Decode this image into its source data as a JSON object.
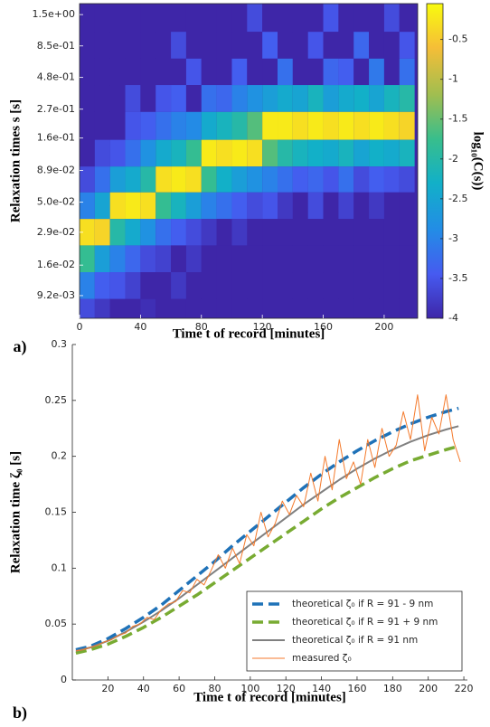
{
  "chart_data": [
    {
      "type": "heatmap",
      "panel_label": "a)",
      "xlabel": "Time t of record [minutes]",
      "ylabel": "Relaxation times s [s]",
      "colorbar_label": "log₁₀(C(s))",
      "colormap": "parula",
      "ylog": true,
      "x": [
        5,
        15,
        25,
        35,
        45,
        55,
        65,
        75,
        85,
        95,
        105,
        115,
        125,
        135,
        145,
        155,
        165,
        175,
        185,
        195,
        205,
        215
      ],
      "y": [
        1.4,
        0.86,
        0.53,
        0.33,
        0.2,
        0.12,
        0.076,
        0.047,
        0.029,
        0.018,
        0.011,
        0.0068
      ],
      "z": [
        [
          -4,
          -4,
          -4,
          -4,
          -4,
          -4,
          -4,
          -4,
          -4,
          -4,
          -4,
          -3.6,
          -4,
          -4,
          -4,
          -4,
          -3.5,
          -4,
          -4,
          -4,
          -3.6,
          -4
        ],
        [
          -4,
          -4,
          -4,
          -4,
          -4,
          -4,
          -3.6,
          -4,
          -4,
          -4,
          -4,
          -4,
          -3.4,
          -4,
          -4,
          -3.5,
          -4,
          -4,
          -3.3,
          -4,
          -4,
          -3.5
        ],
        [
          -4,
          -4,
          -4,
          -4,
          -4,
          -4,
          -4,
          -3.5,
          -4,
          -4,
          -3.4,
          -4,
          -4,
          -3.2,
          -4,
          -4,
          -3.3,
          -3.4,
          -4,
          -3.1,
          -4,
          -3.2
        ],
        [
          -4,
          -4,
          -4,
          -3.6,
          -4,
          -3.5,
          -3.4,
          -4,
          -3.2,
          -3.3,
          -3,
          -2.8,
          -2.6,
          -2.4,
          -2.5,
          -2.2,
          -2.6,
          -2.4,
          -2.3,
          -2.5,
          -2.2,
          -2
        ],
        [
          -4,
          -4,
          -4,
          -3.5,
          -3.4,
          -3.2,
          -3,
          -2.9,
          -2.4,
          -2.2,
          -2,
          -1.6,
          -0.2,
          -0.2,
          -0.3,
          -0.2,
          -0.3,
          -0.2,
          -0.3,
          -0.2,
          -0.3,
          -0.4
        ],
        [
          -4,
          -3.6,
          -3.5,
          -3.2,
          -2.8,
          -2.4,
          -2.2,
          -1.8,
          -0.2,
          -0.3,
          -0.2,
          -0.3,
          -1.6,
          -2,
          -2.2,
          -2.3,
          -2.4,
          -2.2,
          -2.5,
          -2.3,
          -2.4,
          -2.2
        ],
        [
          -3.6,
          -3.2,
          -2.6,
          -2.4,
          -2,
          -0.3,
          -0.2,
          -0.3,
          -1.8,
          -2.3,
          -2.6,
          -2.8,
          -3,
          -3.2,
          -3.4,
          -3.3,
          -3.5,
          -3.2,
          -3.6,
          -3.4,
          -3.5,
          -3.6
        ],
        [
          -3,
          -2.5,
          -0.3,
          -0.2,
          -0.3,
          -1.8,
          -2.2,
          -2.6,
          -3,
          -3.2,
          -3.4,
          -3.6,
          -3.5,
          -3.8,
          -4,
          -3.6,
          -4,
          -3.7,
          -4,
          -3.8,
          -4,
          -4
        ],
        [
          -0.3,
          -0.4,
          -2,
          -2.4,
          -2.8,
          -3.2,
          -3.4,
          -3.6,
          -3.8,
          -4,
          -3.8,
          -4,
          -4,
          -4,
          -4,
          -4,
          -4,
          -4,
          -4,
          -4,
          -4,
          -4
        ],
        [
          -1.8,
          -2.6,
          -3,
          -3.3,
          -3.6,
          -3.7,
          -4,
          -3.8,
          -4,
          -4,
          -4,
          -4,
          -4,
          -4,
          -4,
          -4,
          -4,
          -4,
          -4,
          -4,
          -4,
          -4
        ],
        [
          -3,
          -3.4,
          -3.5,
          -3.7,
          -4,
          -4,
          -3.8,
          -4,
          -4,
          -4,
          -4,
          -4,
          -4,
          -4,
          -4,
          -4,
          -4,
          -4,
          -4,
          -4,
          -4,
          -4
        ],
        [
          -3.6,
          -3.8,
          -4,
          -4,
          -3.9,
          -4,
          -4,
          -4,
          -4,
          -4,
          -4,
          -4,
          -4,
          -4,
          -4,
          -4,
          -4,
          -4,
          -4,
          -4,
          -4,
          -4
        ]
      ],
      "xlim": [
        0,
        222
      ],
      "xticks": [
        0,
        40,
        80,
        120,
        160,
        200
      ],
      "ylim": [
        0.0061,
        1.83
      ],
      "yticks": [
        {
          "value": 1.5,
          "label": "1.5e+00"
        },
        {
          "value": 0.85,
          "label": "8.5e-01"
        },
        {
          "value": 0.48,
          "label": "4.8e-01"
        },
        {
          "value": 0.27,
          "label": "2.7e-01"
        },
        {
          "value": 0.16,
          "label": "1.6e-01"
        },
        {
          "value": 0.089,
          "label": "8.9e-02"
        },
        {
          "value": 0.05,
          "label": "5.0e-02"
        },
        {
          "value": 0.029,
          "label": "2.9e-02"
        },
        {
          "value": 0.016,
          "label": "1.6e-02"
        },
        {
          "value": 0.0092,
          "label": "9.2e-03"
        }
      ],
      "clim": [
        -4,
        -0.05
      ],
      "cticks": [
        -0.5,
        -1,
        -1.5,
        -2,
        -2.5,
        -3,
        -3.5,
        -4
      ]
    },
    {
      "type": "line",
      "panel_label": "b)",
      "xlabel": "Time t of record [minutes]",
      "ylabel": "Relaxation time ζ₀ [s]",
      "legend": "lower right",
      "x": [
        2,
        10,
        20,
        30,
        40,
        50,
        60,
        70,
        80,
        90,
        100,
        110,
        120,
        130,
        140,
        150,
        160,
        170,
        180,
        190,
        200,
        210,
        217
      ],
      "series": [
        {
          "name": "theoretical ζ₀ if R = 91 -  9 nm",
          "color": "#1f72b8",
          "style": "dashed",
          "values": [
            0.027,
            0.03,
            0.037,
            0.046,
            0.056,
            0.067,
            0.08,
            0.093,
            0.106,
            0.12,
            0.133,
            0.146,
            0.159,
            0.172,
            0.184,
            0.195,
            0.205,
            0.214,
            0.222,
            0.229,
            0.235,
            0.24,
            0.243
          ]
        },
        {
          "name": "theoretical ζ₀ if R = 91 + 9 nm",
          "color": "#78ab32",
          "style": "dashed",
          "values": [
            0.024,
            0.027,
            0.032,
            0.039,
            0.047,
            0.056,
            0.066,
            0.076,
            0.087,
            0.098,
            0.109,
            0.12,
            0.131,
            0.142,
            0.153,
            0.163,
            0.172,
            0.181,
            0.189,
            0.196,
            0.201,
            0.206,
            0.209
          ]
        },
        {
          "name": "theoretical ζ₀ if R = 91 nm",
          "color": "#808080",
          "style": "solid",
          "values": [
            0.026,
            0.029,
            0.035,
            0.043,
            0.052,
            0.062,
            0.073,
            0.085,
            0.097,
            0.109,
            0.121,
            0.133,
            0.145,
            0.157,
            0.168,
            0.179,
            0.189,
            0.198,
            0.206,
            0.213,
            0.219,
            0.224,
            0.227
          ]
        },
        {
          "name": "measured ζ₀",
          "color": "#f47a2c",
          "style": "thin",
          "x": [
            2,
            6,
            10,
            14,
            18,
            22,
            26,
            30,
            34,
            38,
            42,
            46,
            50,
            54,
            58,
            62,
            66,
            70,
            74,
            78,
            82,
            86,
            90,
            94,
            98,
            102,
            106,
            110,
            114,
            118,
            122,
            126,
            130,
            134,
            138,
            142,
            146,
            150,
            154,
            158,
            162,
            166,
            170,
            174,
            178,
            182,
            186,
            190,
            194,
            198,
            202,
            206,
            210,
            214,
            218
          ],
          "values": [
            0.026,
            0.027,
            0.029,
            0.031,
            0.034,
            0.036,
            0.04,
            0.042,
            0.048,
            0.05,
            0.056,
            0.054,
            0.063,
            0.068,
            0.07,
            0.08,
            0.078,
            0.09,
            0.085,
            0.098,
            0.112,
            0.1,
            0.118,
            0.104,
            0.13,
            0.12,
            0.15,
            0.128,
            0.14,
            0.16,
            0.148,
            0.165,
            0.155,
            0.185,
            0.16,
            0.2,
            0.17,
            0.215,
            0.18,
            0.195,
            0.175,
            0.215,
            0.19,
            0.225,
            0.2,
            0.21,
            0.24,
            0.215,
            0.255,
            0.205,
            0.235,
            0.22,
            0.255,
            0.215,
            0.195
          ]
        }
      ],
      "xlim": [
        0,
        222
      ],
      "xticks": [
        20,
        40,
        60,
        80,
        100,
        120,
        140,
        160,
        180,
        200,
        220
      ],
      "ylim": [
        0,
        0.3
      ],
      "yticks": [
        0,
        0.05,
        0.1,
        0.15,
        0.2,
        0.25,
        0.3
      ]
    }
  ]
}
